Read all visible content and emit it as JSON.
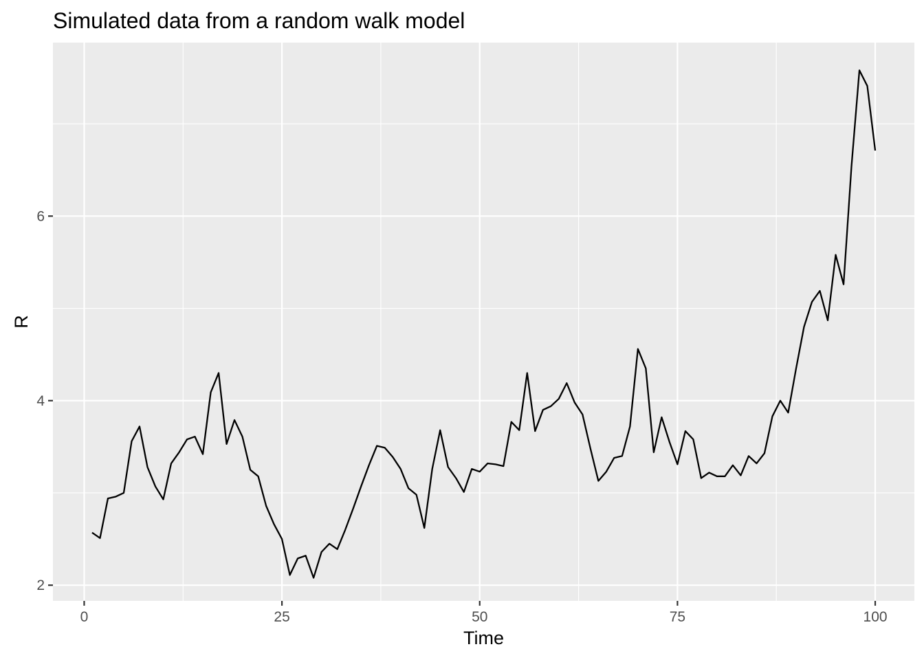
{
  "chart_data": {
    "type": "line",
    "title": "Simulated data from a random walk model",
    "xlabel": "Time",
    "ylabel": "R",
    "xlim": [
      -3.95,
      104.95
    ],
    "ylim": [
      1.83,
      7.88
    ],
    "x_ticks": [
      0,
      25,
      50,
      75,
      100
    ],
    "x_tick_labels": [
      "0",
      "25",
      "50",
      "75",
      "100"
    ],
    "y_ticks": [
      2,
      4,
      6
    ],
    "y_tick_labels": [
      "2",
      "4",
      "6"
    ],
    "grid": true,
    "panel_background": "#ebebeb",
    "grid_color": "#ffffff",
    "line_color": "#000000",
    "series": [
      {
        "x": [
          1,
          2,
          3,
          4,
          5,
          6,
          7,
          8,
          9,
          10,
          11,
          12,
          13,
          14,
          15,
          16,
          17,
          18,
          19,
          20,
          21,
          22,
          23,
          24,
          25,
          26,
          27,
          28,
          29,
          30,
          31,
          32,
          33,
          34,
          35,
          36,
          37,
          38,
          39,
          40,
          41,
          42,
          43,
          44,
          45,
          46,
          47,
          48,
          49,
          50,
          51,
          52,
          53,
          54,
          55,
          56,
          57,
          58,
          59,
          60,
          61,
          62,
          63,
          64,
          65,
          66,
          67,
          68,
          69,
          70,
          71,
          72,
          73,
          74,
          75,
          76,
          77,
          78,
          79,
          80,
          81,
          82,
          83,
          84,
          85,
          86,
          87,
          88,
          89,
          90,
          91,
          92,
          93,
          94,
          95,
          96,
          97,
          98,
          99,
          100
        ],
        "values": [
          2.57,
          2.51,
          2.94,
          2.96,
          3.0,
          3.56,
          3.72,
          3.28,
          3.07,
          2.93,
          3.32,
          3.44,
          3.58,
          3.61,
          3.42,
          4.09,
          4.3,
          3.53,
          3.79,
          3.61,
          3.25,
          3.18,
          2.86,
          2.66,
          2.5,
          2.11,
          2.29,
          2.32,
          2.08,
          2.36,
          2.45,
          2.39,
          2.6,
          2.83,
          3.07,
          3.3,
          3.51,
          3.49,
          3.39,
          3.26,
          3.05,
          2.98,
          2.62,
          3.26,
          3.68,
          3.28,
          3.16,
          3.01,
          3.26,
          3.23,
          3.32,
          3.31,
          3.29,
          3.77,
          3.68,
          4.3,
          3.67,
          3.9,
          3.94,
          4.02,
          4.19,
          3.98,
          3.85,
          3.48,
          3.13,
          3.23,
          3.38,
          3.4,
          3.72,
          4.56,
          4.35,
          3.44,
          3.82,
          3.55,
          3.31,
          3.67,
          3.58,
          3.16,
          3.22,
          3.18,
          3.18,
          3.3,
          3.19,
          3.4,
          3.32,
          3.43,
          3.83,
          4.0,
          3.87,
          4.35,
          4.8,
          5.07,
          5.19,
          4.87,
          5.58,
          5.26,
          6.54,
          7.58,
          7.41,
          6.71
        ]
      }
    ]
  }
}
